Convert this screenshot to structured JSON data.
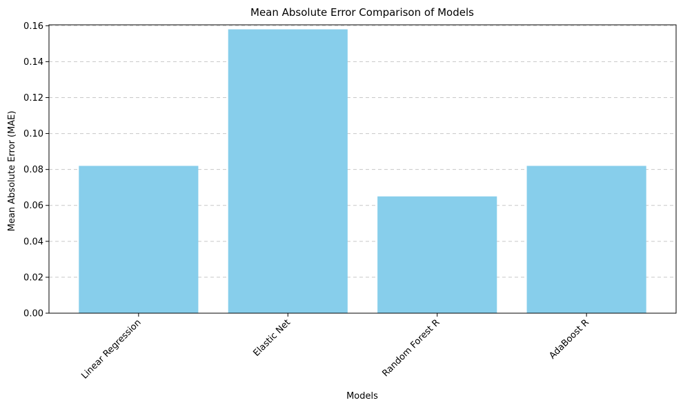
{
  "chart_data": {
    "type": "bar",
    "title": "Mean Absolute Error Comparison of Models",
    "xlabel": "Models",
    "ylabel": "Mean Absolute Error (MAE)",
    "categories": [
      "Linear Regression",
      "Elastic Net",
      "Random Forest R",
      "AdaBoost R"
    ],
    "values": [
      0.082,
      0.158,
      0.065,
      0.082
    ],
    "ylim": [
      0,
      0.1605
    ],
    "yticks": [
      "0.00",
      "0.02",
      "0.04",
      "0.06",
      "0.08",
      "0.10",
      "0.12",
      "0.14",
      "0.16"
    ],
    "grid": "y, dashed",
    "bar_color": "#87ceeb"
  }
}
